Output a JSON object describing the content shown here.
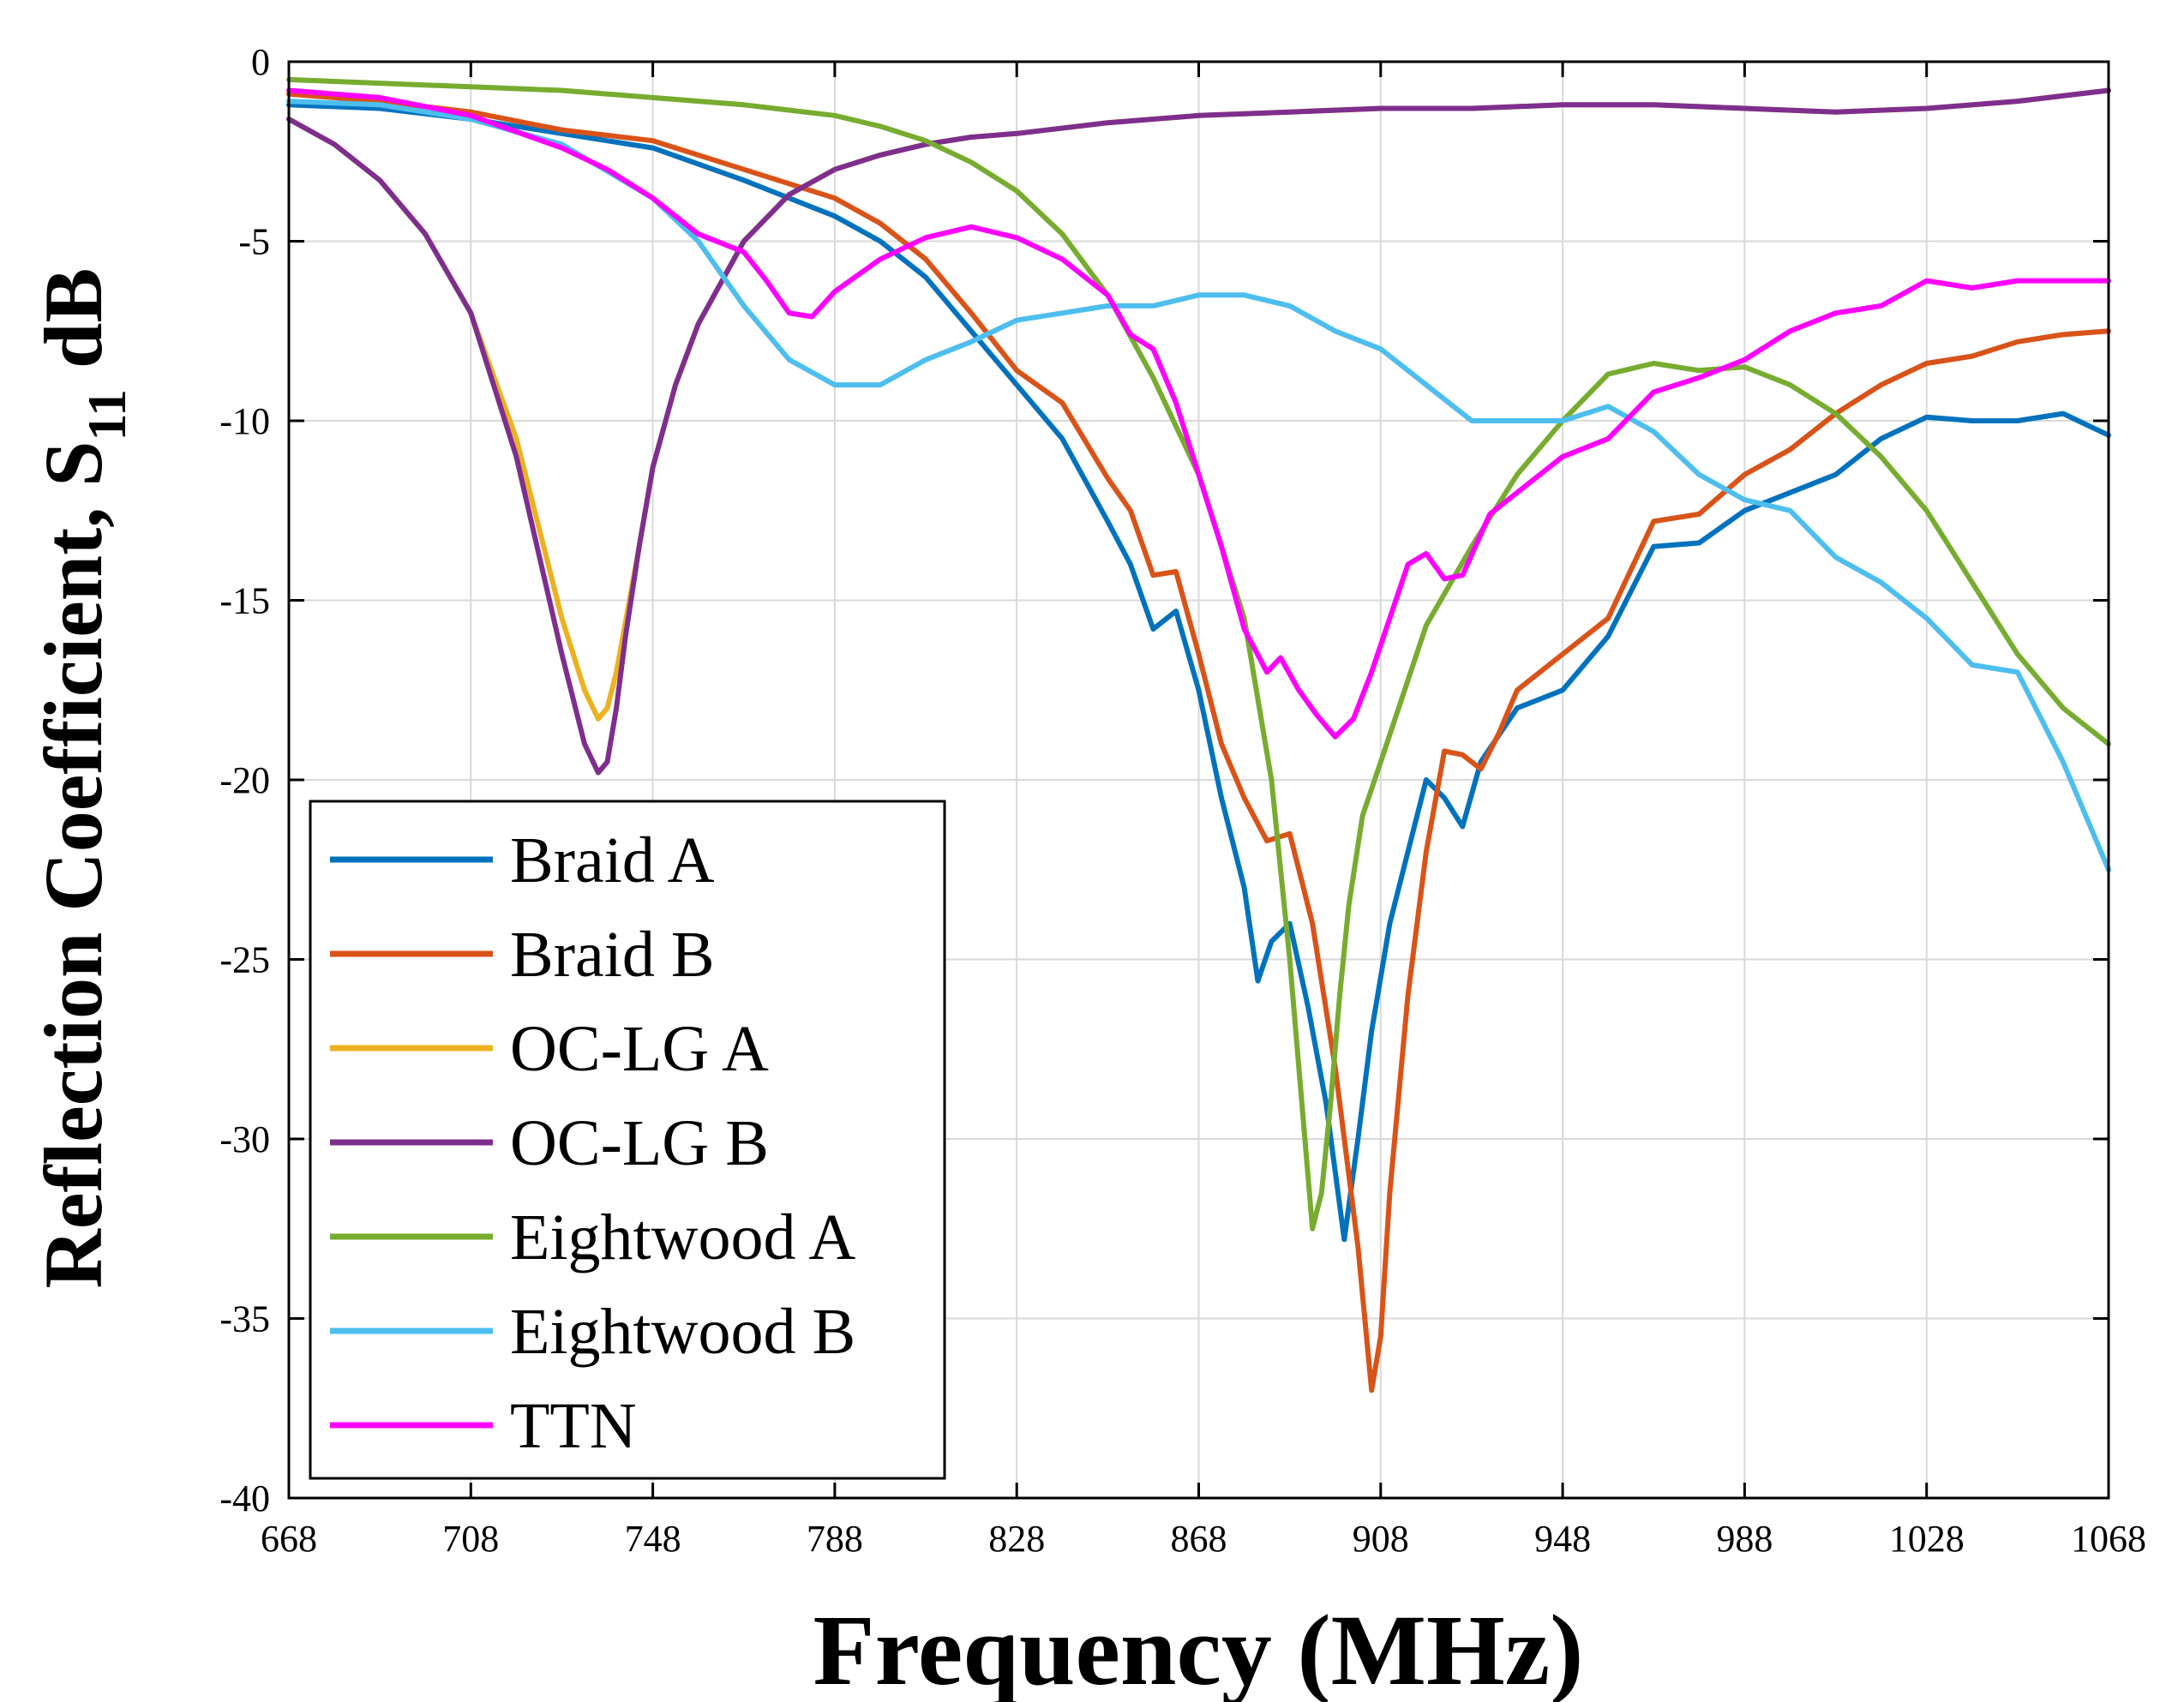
{
  "chart_data": {
    "type": "line",
    "title": "",
    "xlabel": "Frequency (MHz)",
    "ylabel": "Reflection Coefficient, S11 dB",
    "ylabel_main": "Reflection Coefficient, S",
    "ylabel_sub": "11",
    "ylabel_unit": " dB",
    "xlim": [
      668,
      1068
    ],
    "ylim": [
      -40,
      0
    ],
    "x_ticks": [
      668,
      708,
      748,
      788,
      828,
      868,
      908,
      948,
      988,
      1028,
      1068
    ],
    "x_tick_labels": [
      "668",
      "708",
      "748",
      "788",
      "828",
      "868",
      "908",
      "948",
      "988",
      "1028",
      "1068"
    ],
    "y_ticks": [
      0,
      -5,
      -10,
      -15,
      -20,
      -25,
      -30,
      -35,
      -40
    ],
    "y_tick_labels": [
      "0",
      "-5",
      "-10",
      "-15",
      "-20",
      "-25",
      "-30",
      "-35",
      "-40"
    ],
    "grid": true,
    "legend_position": "bottom-left",
    "series": [
      {
        "name": "Braid A",
        "color": "#0072BD",
        "x": [
          668,
          688,
          708,
          728,
          748,
          768,
          788,
          798,
          808,
          818,
          828,
          838,
          848,
          853,
          858,
          863,
          868,
          873,
          878,
          881,
          884,
          888,
          892,
          896,
          900,
          903,
          906,
          910,
          914,
          918,
          922,
          926,
          930,
          938,
          948,
          958,
          968,
          978,
          988,
          998,
          1008,
          1018,
          1028,
          1038,
          1048,
          1058,
          1068
        ],
        "y": [
          -1.2,
          -1.3,
          -1.6,
          -2.0,
          -2.4,
          -3.3,
          -4.3,
          -5.0,
          -6.0,
          -7.5,
          -9.0,
          -10.5,
          -12.8,
          -14.0,
          -15.8,
          -15.3,
          -17.5,
          -20.5,
          -23.0,
          -25.6,
          -24.5,
          -24.0,
          -26.3,
          -29.0,
          -32.8,
          -30.0,
          -27.0,
          -24.0,
          -22.0,
          -20.0,
          -20.5,
          -21.3,
          -19.5,
          -18.0,
          -17.5,
          -16.0,
          -13.5,
          -13.4,
          -12.5,
          -12.0,
          -11.5,
          -10.5,
          -9.9,
          -10.0,
          -10.0,
          -9.8,
          -10.4
        ]
      },
      {
        "name": "Braid B",
        "color": "#D95319",
        "x": [
          668,
          688,
          708,
          728,
          748,
          768,
          788,
          798,
          808,
          818,
          828,
          838,
          848,
          853,
          858,
          863,
          868,
          873,
          878,
          883,
          888,
          893,
          898,
          903,
          906,
          908,
          910,
          914,
          918,
          922,
          926,
          930,
          934,
          938,
          948,
          958,
          968,
          978,
          988,
          998,
          1008,
          1018,
          1028,
          1038,
          1048,
          1058,
          1068
        ],
        "y": [
          -0.9,
          -1.1,
          -1.4,
          -1.9,
          -2.2,
          -3.0,
          -3.8,
          -4.5,
          -5.5,
          -7.0,
          -8.6,
          -9.5,
          -11.6,
          -12.5,
          -14.3,
          -14.2,
          -16.5,
          -19.0,
          -20.5,
          -21.7,
          -21.5,
          -24.0,
          -28.0,
          -33.0,
          -37.0,
          -35.5,
          -31.5,
          -26.0,
          -22.0,
          -19.2,
          -19.3,
          -19.7,
          -18.7,
          -17.5,
          -16.5,
          -15.5,
          -12.8,
          -12.6,
          -11.5,
          -10.8,
          -9.8,
          -9.0,
          -8.4,
          -8.2,
          -7.8,
          -7.6,
          -7.5
        ]
      },
      {
        "name": "OC-LG A",
        "color": "#EDB120",
        "x": [
          668,
          678,
          688,
          698,
          708,
          718,
          728,
          733,
          736,
          738,
          740,
          742,
          745,
          748,
          753,
          758,
          768,
          778,
          788,
          798,
          808,
          818,
          828,
          848,
          868,
          888,
          908,
          928,
          948,
          968,
          988,
          1008,
          1028,
          1048,
          1068
        ],
        "y": [
          -1.6,
          -2.3,
          -3.3,
          -4.8,
          -7.0,
          -10.5,
          -15.5,
          -17.5,
          -18.3,
          -18.0,
          -17.0,
          -15.6,
          -13.5,
          -11.3,
          -9.0,
          -7.3,
          -5.0,
          -3.7,
          -3.0,
          -2.6,
          -2.3,
          -2.1,
          -2.0,
          -1.7,
          -1.5,
          -1.4,
          -1.3,
          -1.3,
          -1.2,
          -1.2,
          -1.3,
          -1.4,
          -1.3,
          -1.1,
          -0.8
        ]
      },
      {
        "name": "OC-LG B",
        "color": "#7E2F8E",
        "x": [
          668,
          678,
          688,
          698,
          708,
          718,
          728,
          733,
          736,
          738,
          740,
          742,
          745,
          748,
          753,
          758,
          768,
          778,
          788,
          798,
          808,
          818,
          828,
          848,
          868,
          888,
          908,
          928,
          948,
          968,
          988,
          1008,
          1028,
          1048,
          1068
        ],
        "y": [
          -1.6,
          -2.3,
          -3.3,
          -4.8,
          -7.0,
          -11.0,
          -16.5,
          -19.0,
          -19.8,
          -19.5,
          -18.0,
          -16.0,
          -13.5,
          -11.3,
          -9.0,
          -7.3,
          -5.0,
          -3.7,
          -3.0,
          -2.6,
          -2.3,
          -2.1,
          -2.0,
          -1.7,
          -1.5,
          -1.4,
          -1.3,
          -1.3,
          -1.2,
          -1.2,
          -1.3,
          -1.4,
          -1.3,
          -1.1,
          -0.8
        ]
      },
      {
        "name": "Eightwood A",
        "color": "#77AC30",
        "x": [
          668,
          688,
          708,
          728,
          748,
          768,
          788,
          798,
          808,
          818,
          828,
          838,
          848,
          858,
          868,
          878,
          884,
          888,
          891,
          893,
          895,
          897,
          899,
          901,
          904,
          908,
          918,
          928,
          938,
          948,
          958,
          968,
          978,
          988,
          998,
          1008,
          1018,
          1028,
          1038,
          1048,
          1058,
          1068
        ],
        "y": [
          -0.5,
          -0.6,
          -0.7,
          -0.8,
          -1.0,
          -1.2,
          -1.5,
          -1.8,
          -2.2,
          -2.8,
          -3.6,
          -4.8,
          -6.5,
          -8.8,
          -11.5,
          -15.5,
          -20.0,
          -25.0,
          -29.5,
          -32.5,
          -31.5,
          -29.0,
          -26.0,
          -23.5,
          -21.0,
          -19.5,
          -15.7,
          -13.5,
          -11.5,
          -10.0,
          -8.7,
          -8.4,
          -8.6,
          -8.5,
          -9.0,
          -9.8,
          -11.0,
          -12.5,
          -14.5,
          -16.5,
          -18.0,
          -19.0
        ]
      },
      {
        "name": "Eightwood B",
        "color": "#4DBEEE",
        "x": [
          668,
          688,
          708,
          728,
          748,
          758,
          768,
          778,
          788,
          798,
          808,
          818,
          828,
          838,
          848,
          858,
          868,
          878,
          888,
          898,
          908,
          918,
          928,
          938,
          948,
          958,
          968,
          978,
          988,
          998,
          1008,
          1018,
          1028,
          1038,
          1048,
          1058,
          1068
        ],
        "y": [
          -1.1,
          -1.2,
          -1.6,
          -2.3,
          -3.8,
          -5.0,
          -6.8,
          -8.3,
          -9.0,
          -9.0,
          -8.3,
          -7.8,
          -7.2,
          -7.0,
          -6.8,
          -6.8,
          -6.5,
          -6.5,
          -6.8,
          -7.5,
          -8.0,
          -9.0,
          -10.0,
          -10.0,
          -10.0,
          -9.6,
          -10.3,
          -11.5,
          -12.2,
          -12.5,
          -13.8,
          -14.5,
          -15.5,
          -16.8,
          -17.0,
          -19.5,
          -22.5
        ]
      },
      {
        "name": "TTN",
        "color": "#FF00FF",
        "x": [
          668,
          688,
          708,
          728,
          738,
          748,
          758,
          768,
          773,
          778,
          783,
          788,
          798,
          808,
          818,
          828,
          838,
          848,
          853,
          858,
          863,
          868,
          873,
          878,
          883,
          886,
          890,
          894,
          898,
          902,
          906,
          910,
          914,
          918,
          922,
          926,
          932,
          938,
          948,
          958,
          968,
          978,
          988,
          998,
          1008,
          1018,
          1028,
          1038,
          1048,
          1058,
          1068
        ],
        "y": [
          -0.8,
          -1.0,
          -1.5,
          -2.4,
          -3.0,
          -3.8,
          -4.8,
          -5.3,
          -6.1,
          -7.0,
          -7.1,
          -6.4,
          -5.5,
          -4.9,
          -4.6,
          -4.9,
          -5.5,
          -6.5,
          -7.6,
          -8.0,
          -9.5,
          -11.5,
          -13.5,
          -15.8,
          -17.0,
          -16.6,
          -17.5,
          -18.2,
          -18.8,
          -18.3,
          -17.0,
          -15.5,
          -14.0,
          -13.7,
          -14.4,
          -14.3,
          -12.6,
          -12.0,
          -11.0,
          -10.5,
          -9.2,
          -8.8,
          -8.3,
          -7.5,
          -7.0,
          -6.8,
          -6.1,
          -6.3,
          -6.1,
          -6.1,
          -6.1
        ]
      }
    ]
  }
}
